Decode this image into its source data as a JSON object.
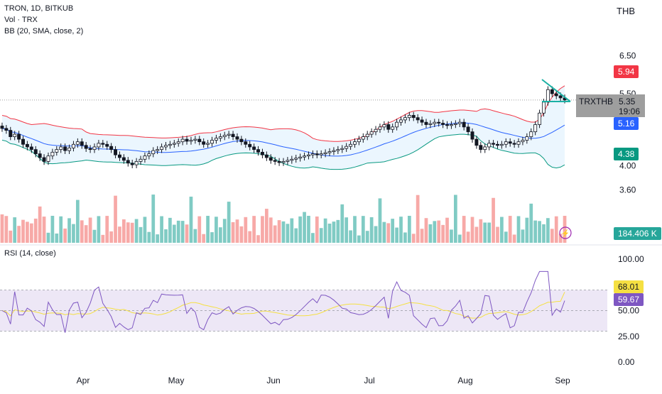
{
  "legend": {
    "main": "TRON, 1D, BITKUB",
    "volume": "Vol · TRX",
    "bb": "BB (20, SMA, close, 2)",
    "rsi": "RSI (14, close)"
  },
  "currency": "THB",
  "tags": {
    "bb_upper": "5.94",
    "symbol": "TRXTHB",
    "price": "5.35",
    "countdown": "19:06",
    "bb_basis": "5.16",
    "bb_lower": "4.38",
    "volume": "184.406 K",
    "rsi_ma": "68.01",
    "rsi": "59.67"
  },
  "colors": {
    "up": "#26a69a",
    "down": "#ef5350",
    "bb_upper": "#f23645",
    "bb_basis": "#2962ff",
    "bb_lower": "#089981",
    "bb_fill": "#e3f2fd",
    "rsi_line": "#7e57c2",
    "rsi_ma": "#f5e042",
    "rsi_band": "#ede7f6",
    "wedge": "#1bb0a4"
  },
  "chart_data": [
    {
      "type": "candlestick",
      "title": "TRON, 1D, BITKUB",
      "y_axis": {
        "ticks": [
          6.5,
          5.5,
          4.0,
          3.6
        ],
        "ylim": [
          3.2,
          7.0
        ],
        "scale": "log"
      },
      "x_axis": {
        "ticks": [
          "Apr",
          "May",
          "Jun",
          "Jul",
          "Aug",
          "Sep"
        ]
      },
      "series": [
        {
          "name": "close",
          "x_range": [
            "Mar 5",
            "Aug 31"
          ],
          "values": [
            4.72,
            4.68,
            4.55,
            4.6,
            4.5,
            4.4,
            4.35,
            4.3,
            4.22,
            4.15,
            4.08,
            4.18,
            4.25,
            4.3,
            4.35,
            4.28,
            4.33,
            4.4,
            4.45,
            4.38,
            4.32,
            4.3,
            4.35,
            4.42,
            4.4,
            4.36,
            4.3,
            4.2,
            4.15,
            4.1,
            4.05,
            4.02,
            4.08,
            4.12,
            4.18,
            4.22,
            4.28,
            4.3,
            4.35,
            4.38,
            4.4,
            4.42,
            4.45,
            4.5,
            4.46,
            4.48,
            4.5,
            4.45,
            4.4,
            4.42,
            4.48,
            4.52,
            4.55,
            4.58,
            4.6,
            4.55,
            4.5,
            4.45,
            4.4,
            4.35,
            4.3,
            4.25,
            4.2,
            4.15,
            4.1,
            4.08,
            4.06,
            4.08,
            4.1,
            4.12,
            4.14,
            4.16,
            4.18,
            4.2,
            4.22,
            4.2,
            4.22,
            4.24,
            4.26,
            4.28,
            4.3,
            4.32,
            4.36,
            4.4,
            4.45,
            4.5,
            4.55,
            4.6,
            4.65,
            4.7,
            4.75,
            4.8,
            4.7,
            4.75,
            4.85,
            4.9,
            4.95,
            5.0,
            4.95,
            4.9,
            4.85,
            4.8,
            4.82,
            4.85,
            4.83,
            4.8,
            4.78,
            4.8,
            4.82,
            4.85,
            4.75,
            4.65,
            4.5,
            4.38,
            4.3,
            4.35,
            4.42,
            4.4,
            4.38,
            4.4,
            4.45,
            4.42,
            4.4,
            4.45,
            4.48,
            4.55,
            4.65,
            4.8,
            5.05,
            5.3,
            5.6,
            5.5,
            5.45,
            5.4,
            5.35
          ]
        },
        {
          "name": "BB upper",
          "values_summary": "≈5.0 Mar, ≈4.6 May, ≈5.0 Jul, ≈5.94 Sep"
        },
        {
          "name": "BB basis",
          "values_summary": "≈4.7 Mar, ≈4.3 May–Jun, ≈4.6 Jul, ≈5.16 Sep"
        },
        {
          "name": "BB lower",
          "values_summary": "≈4.2 Mar, ≈4.0 May–Jun, ≈4.3 Aug, ≈4.38 Sep"
        }
      ]
    },
    {
      "type": "bar",
      "title": "Vol · TRX",
      "last_value": "184.406 K"
    },
    {
      "type": "line",
      "title": "RSI (14, close)",
      "y_axis": {
        "ticks": [
          100.0,
          75.0,
          50.0,
          25.0,
          0.0
        ],
        "ylim": [
          0,
          100
        ]
      },
      "bands": [
        30,
        70
      ],
      "series": [
        {
          "name": "RSI",
          "last_value": 59.67
        },
        {
          "name": "RSI MA",
          "last_value": 68.01
        }
      ]
    }
  ],
  "axis": {
    "price_ticks": [
      "6.50",
      "5.50",
      "4.00",
      "3.60"
    ],
    "rsi_ticks": [
      "100.00",
      "50.00",
      "25.00",
      "0.00"
    ],
    "months": [
      "Apr",
      "May",
      "Jun",
      "Jul",
      "Aug",
      "Sep"
    ]
  }
}
